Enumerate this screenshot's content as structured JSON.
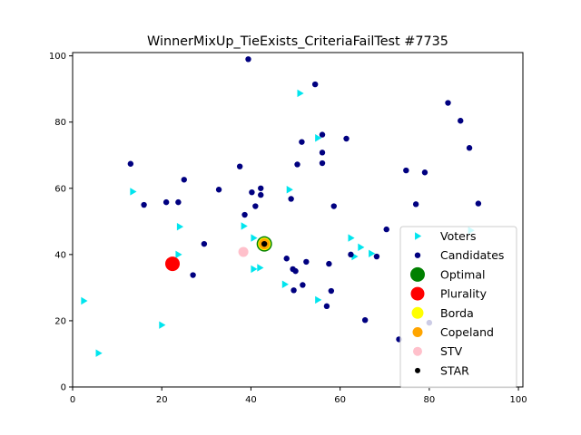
{
  "chart_data": {
    "type": "scatter",
    "title": "WinnerMixUp_TieExists_CriteriaFailTest #7735",
    "xlabel": "",
    "ylabel": "",
    "xlim": [
      0,
      101
    ],
    "ylim": [
      0,
      101
    ],
    "xticks": [
      0,
      20,
      40,
      60,
      80,
      100
    ],
    "yticks": [
      0,
      20,
      40,
      60,
      80,
      100
    ],
    "grid": false,
    "legend_position": "lower-right",
    "series": [
      {
        "name": "Voters",
        "marker": "triangle-right",
        "color": "#00e5ee",
        "points": [
          [
            2.5,
            26
          ],
          [
            5.8,
            10.2
          ],
          [
            13.5,
            59
          ],
          [
            20,
            18.7
          ],
          [
            23.7,
            40
          ],
          [
            24,
            48.4
          ],
          [
            38.4,
            48.6
          ],
          [
            40.6,
            45
          ],
          [
            40.6,
            35.6
          ],
          [
            42,
            36
          ],
          [
            47.6,
            31
          ],
          [
            48.6,
            59.6
          ],
          [
            51,
            88.7
          ],
          [
            55,
            75.2
          ],
          [
            55,
            26.3
          ],
          [
            62.4,
            45
          ],
          [
            63.2,
            39.4
          ],
          [
            64.6,
            42.2
          ],
          [
            67,
            40.3
          ],
          [
            89.3,
            47.3
          ]
        ]
      },
      {
        "name": "Candidates",
        "marker": "circle",
        "color": "#000080",
        "points": [
          [
            13,
            67.4
          ],
          [
            16,
            55
          ],
          [
            21,
            55.8
          ],
          [
            23.7,
            55.8
          ],
          [
            25,
            62.6
          ],
          [
            27,
            33.8
          ],
          [
            29.5,
            43.2
          ],
          [
            32.8,
            59.6
          ],
          [
            37.5,
            66.6
          ],
          [
            38.6,
            52
          ],
          [
            39.4,
            99
          ],
          [
            40.2,
            58.8
          ],
          [
            41,
            54.6
          ],
          [
            42.2,
            58
          ],
          [
            42.2,
            60
          ],
          [
            48,
            38.8
          ],
          [
            49,
            56.8
          ],
          [
            49.4,
            35.6
          ],
          [
            49.6,
            29.2
          ],
          [
            50,
            35
          ],
          [
            50.4,
            67.2
          ],
          [
            51.4,
            74
          ],
          [
            51.6,
            30.8
          ],
          [
            52.4,
            37.8
          ],
          [
            54.4,
            91.4
          ],
          [
            56,
            76.2
          ],
          [
            56,
            70.8
          ],
          [
            56,
            67.6
          ],
          [
            57,
            24.4
          ],
          [
            57.5,
            37.2
          ],
          [
            58,
            29
          ],
          [
            58.6,
            54.6
          ],
          [
            61.4,
            75
          ],
          [
            62.4,
            40
          ],
          [
            65.6,
            20.2
          ],
          [
            68.2,
            39.4
          ],
          [
            70.4,
            47.6
          ],
          [
            73.2,
            14.4
          ],
          [
            74.8,
            65.4
          ],
          [
            77,
            55.2
          ],
          [
            79,
            64.8
          ],
          [
            80,
            19.4
          ],
          [
            84.2,
            85.8
          ],
          [
            87,
            80.4
          ],
          [
            89,
            72.2
          ],
          [
            91,
            55.4
          ]
        ]
      },
      {
        "name": "Optimal",
        "marker": "circle",
        "color": "#008000",
        "points": [
          [
            43,
            43.2
          ]
        ]
      },
      {
        "name": "Plurality",
        "marker": "circle",
        "color": "#ff0000",
        "points": [
          [
            22.4,
            37.2
          ]
        ]
      },
      {
        "name": "Borda",
        "marker": "circle",
        "color": "#ffff00",
        "points": [
          [
            43,
            43.2
          ]
        ]
      },
      {
        "name": "Copeland",
        "marker": "circle",
        "color": "#ffa500",
        "points": [
          [
            43,
            43.2
          ]
        ]
      },
      {
        "name": "STV",
        "marker": "circle",
        "color": "#ffc0cb",
        "points": [
          [
            38.3,
            40.8
          ]
        ]
      },
      {
        "name": "STAR",
        "marker": "circle",
        "color": "#000000",
        "points": [
          [
            43,
            43.2
          ]
        ]
      }
    ]
  }
}
